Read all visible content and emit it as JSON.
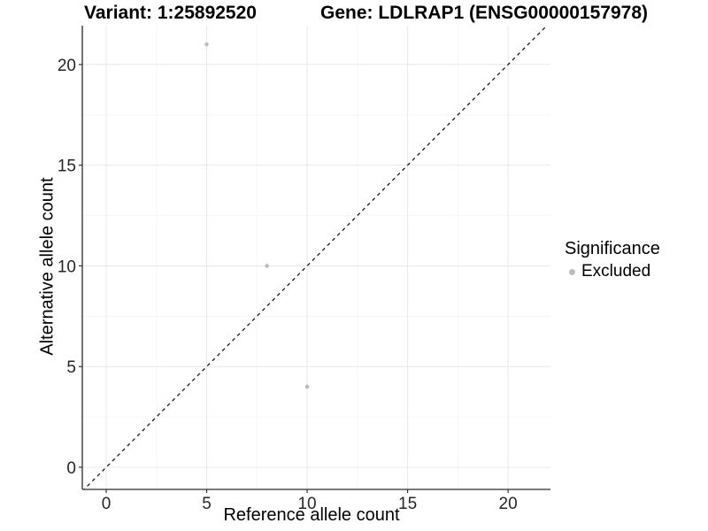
{
  "header": {
    "title_left": "Variant: 1:25892520",
    "title_right": "Gene: LDLRAP1 (ENSG00000157978)"
  },
  "chart_data": {
    "type": "scatter",
    "title": "Variant: 1:25892520 / Gene: LDLRAP1 (ENSG00000157978)",
    "xlabel": "Reference allele count",
    "ylabel": "Alternative allele count",
    "xlim": [
      -1.19,
      22.11
    ],
    "ylim": [
      -1.1,
      21.93
    ],
    "xticks": [
      0,
      5,
      10,
      15,
      20
    ],
    "yticks": [
      0,
      5,
      10,
      15,
      20
    ],
    "xticks_minor": [
      2.5,
      7.5,
      12.5,
      17.5
    ],
    "yticks_minor": [
      2.5,
      7.5,
      12.5,
      17.5
    ],
    "grid": "major+minor",
    "series": [
      {
        "name": "Excluded",
        "points": [
          {
            "x": 5,
            "y": 21
          },
          {
            "x": 8,
            "y": 10
          },
          {
            "x": 10,
            "y": 4
          }
        ]
      }
    ],
    "identity_line": {
      "slope": 1,
      "intercept": 0,
      "style": "dashed",
      "color": "#1a1a1a"
    },
    "legend": {
      "title": "Significance",
      "position": "right",
      "items": [
        {
          "label": "Excluded",
          "color": "#bcbcbc"
        }
      ]
    }
  },
  "style": {
    "point_color": "#bcbcbc",
    "point_radius": 2.3,
    "grid_major_color": "#e8e8e8",
    "grid_minor_color": "#f4f4f4",
    "axis_line_color": "#2a2a2a",
    "tick_color": "#333333",
    "tick_label_color": "#262626",
    "background": "#ffffff"
  }
}
